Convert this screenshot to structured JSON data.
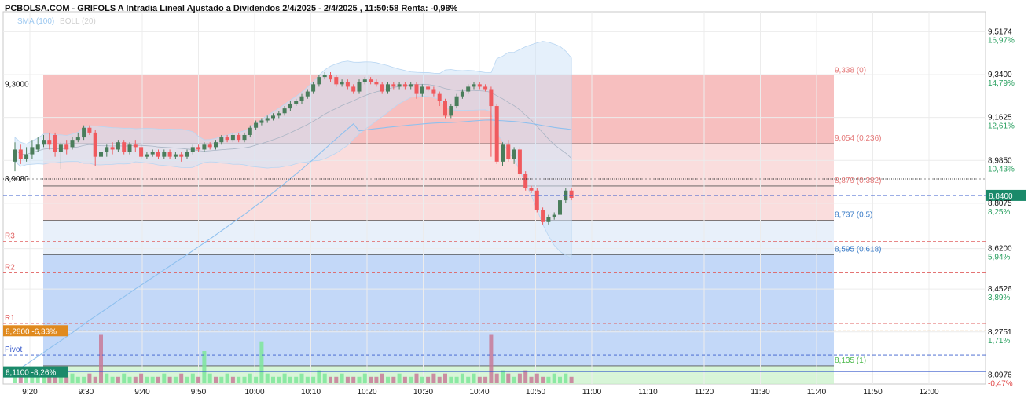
{
  "header": {
    "title": "PCBOLSA.COM - GRIFOLS A Intradia Lineal Ajustado a Dividendos 2/4/2025 - 2/4/2025 , 11:50:58 Renta: -0,98%",
    "indicators": {
      "sma": "SMA (100)",
      "boll": "BOLL (20)"
    }
  },
  "colors": {
    "up": "#4a7d5b",
    "down": "#f05a5e",
    "fib_upper": "#f4aaaa",
    "fib_middle": "#f9d4d4",
    "fib_lower": "#bcd4f7",
    "fib_bottom": "#c9f2c9",
    "sma": "#8fc0ee",
    "bollinger": "#cfe4f7",
    "pivot_red": "#e06060",
    "pivot_blue": "#3a5ccc",
    "price_tag": "#1a8a6a"
  },
  "chart_data": {
    "type": "candlestick",
    "ylim": [
      8.06,
      9.6
    ],
    "x_ticks": [
      "9:20",
      "9:30",
      "9:40",
      "9:50",
      "10:00",
      "10:10",
      "10:20",
      "10:30",
      "10:40",
      "10:50",
      "11:00",
      "11:10",
      "11:20",
      "11:30",
      "11:40",
      "11:50",
      "12:00"
    ],
    "y_ticks": [
      {
        "price": "9,5174",
        "pct": "16,97%"
      },
      {
        "price": "9,3400",
        "pct": "14,79%"
      },
      {
        "price": "9,1625",
        "pct": "12,61%"
      },
      {
        "price": "8,9850",
        "pct": "10,43%"
      },
      {
        "price": "8,8075",
        "pct": "8,25%"
      },
      {
        "price": "8,6200",
        "pct": "5,94%"
      },
      {
        "price": "8,4526",
        "pct": "3,89%"
      },
      {
        "price": "8,2751",
        "pct": "1,71%"
      },
      {
        "price": "8,0976",
        "pct": "-0,47%"
      }
    ],
    "current_price": {
      "label": "8,8400",
      "value": 8.84
    },
    "left_tags": [
      {
        "label": "9,3000",
        "value": 9.3
      },
      {
        "label": "8,9080",
        "value": 8.908
      }
    ],
    "left_badges": [
      {
        "label": "8,2800 -6,33%",
        "value": 8.28,
        "color": "#e08a1e"
      },
      {
        "label": "8,1100 -8,26%",
        "value": 8.11,
        "color": "#1a8a6a"
      }
    ],
    "fibonacci": [
      {
        "label": "9,338 (0)",
        "value": 9.338
      },
      {
        "label": "9,054 (0.236)",
        "value": 9.054
      },
      {
        "label": "8,879 (0.382)",
        "value": 8.879
      },
      {
        "label": "8,737 (0.5)",
        "value": 8.737
      },
      {
        "label": "8,595 (0.618)",
        "value": 8.595
      },
      {
        "label": "8,135 (1)",
        "value": 8.135
      }
    ],
    "pivots": [
      {
        "label": "R3",
        "value": 8.65
      },
      {
        "label": "R2",
        "value": 8.52
      },
      {
        "label": "R1",
        "value": 8.31
      },
      {
        "label": "Pivot",
        "value": 8.18
      }
    ],
    "candles": [
      [
        0,
        8.98,
        9.03,
        8.94,
        9.06
      ],
      [
        1,
        9.03,
        8.99,
        8.97,
        9.05
      ],
      [
        2,
        8.99,
        9.01,
        8.98,
        9.04
      ],
      [
        3,
        9.01,
        9.04,
        8.99,
        9.07
      ],
      [
        4,
        9.03,
        9.05,
        9.02,
        9.08
      ],
      [
        5,
        9.05,
        9.07,
        9.04,
        9.09
      ],
      [
        6,
        9.07,
        9.05,
        9.03,
        9.1
      ],
      [
        7,
        9.09,
        9.02,
        9.0,
        9.1
      ],
      [
        8,
        9.02,
        9.05,
        8.95,
        9.06
      ],
      [
        9,
        9.05,
        9.03,
        9.01,
        9.07
      ],
      [
        10,
        9.04,
        9.07,
        9.03,
        9.08
      ],
      [
        11,
        9.07,
        9.08,
        9.06,
        9.1
      ],
      [
        12,
        9.08,
        9.12,
        9.07,
        9.13
      ],
      [
        13,
        9.12,
        9.1,
        9.09,
        9.13
      ],
      [
        14,
        9.1,
        9.0,
        8.96,
        9.11
      ],
      [
        15,
        9.0,
        9.02,
        8.99,
        9.04
      ],
      [
        16,
        9.02,
        9.04,
        9.0,
        9.05
      ],
      [
        17,
        9.04,
        9.03,
        9.01,
        9.06
      ],
      [
        18,
        9.03,
        9.06,
        9.02,
        9.07
      ],
      [
        19,
        9.06,
        9.02,
        9.01,
        9.07
      ],
      [
        20,
        9.02,
        9.05,
        9.01,
        9.06
      ],
      [
        21,
        9.05,
        9.04,
        9.02,
        9.07
      ],
      [
        22,
        9.04,
        9.0,
        8.99,
        9.05
      ],
      [
        23,
        9.0,
        9.01,
        8.99,
        9.02
      ],
      [
        24,
        9.01,
        9.02,
        9.0,
        9.03
      ],
      [
        25,
        9.02,
        9.0,
        8.99,
        9.03
      ],
      [
        26,
        9.0,
        9.02,
        8.99,
        9.03
      ],
      [
        27,
        9.02,
        9.0,
        8.99,
        9.03
      ],
      [
        28,
        9.0,
        9.01,
        8.99,
        9.02
      ],
      [
        29,
        9.01,
        9.0,
        8.98,
        9.02
      ],
      [
        30,
        9.0,
        9.02,
        8.99,
        9.03
      ],
      [
        31,
        9.02,
        9.04,
        9.01,
        9.05
      ],
      [
        32,
        9.04,
        9.03,
        9.02,
        9.05
      ],
      [
        33,
        9.03,
        9.05,
        9.02,
        9.06
      ],
      [
        34,
        9.05,
        9.04,
        9.03,
        9.06
      ],
      [
        35,
        9.04,
        9.06,
        9.03,
        9.07
      ],
      [
        36,
        9.06,
        9.08,
        9.05,
        9.09
      ],
      [
        37,
        9.08,
        9.07,
        9.06,
        9.09
      ],
      [
        38,
        9.07,
        9.09,
        9.06,
        9.1
      ],
      [
        39,
        9.09,
        9.07,
        9.06,
        9.1
      ],
      [
        40,
        9.07,
        9.09,
        9.06,
        9.1
      ],
      [
        41,
        9.09,
        9.12,
        9.08,
        9.13
      ],
      [
        42,
        9.12,
        9.14,
        9.11,
        9.15
      ],
      [
        43,
        9.14,
        9.15,
        9.13,
        9.16
      ],
      [
        44,
        9.15,
        9.16,
        9.14,
        9.17
      ],
      [
        45,
        9.16,
        9.17,
        9.15,
        9.18
      ],
      [
        46,
        9.17,
        9.18,
        9.16,
        9.19
      ],
      [
        47,
        9.18,
        9.2,
        9.17,
        9.21
      ],
      [
        48,
        9.2,
        9.22,
        9.19,
        9.23
      ],
      [
        49,
        9.22,
        9.23,
        9.21,
        9.24
      ],
      [
        50,
        9.23,
        9.25,
        9.22,
        9.26
      ],
      [
        51,
        9.25,
        9.27,
        9.24,
        9.28
      ],
      [
        52,
        9.27,
        9.3,
        9.26,
        9.31
      ],
      [
        53,
        9.3,
        9.33,
        9.29,
        9.34
      ],
      [
        54,
        9.33,
        9.34,
        9.32,
        9.35
      ],
      [
        55,
        9.34,
        9.32,
        9.31,
        9.35
      ],
      [
        56,
        9.33,
        9.3,
        9.29,
        9.34
      ],
      [
        57,
        9.3,
        9.31,
        9.29,
        9.32
      ],
      [
        58,
        9.31,
        9.29,
        9.28,
        9.32
      ],
      [
        59,
        9.29,
        9.27,
        9.26,
        9.3
      ],
      [
        60,
        9.27,
        9.31,
        9.26,
        9.32
      ],
      [
        61,
        9.31,
        9.32,
        9.3,
        9.33
      ],
      [
        62,
        9.32,
        9.31,
        9.3,
        9.33
      ],
      [
        63,
        9.31,
        9.3,
        9.29,
        9.32
      ],
      [
        64,
        9.3,
        9.27,
        9.26,
        9.31
      ],
      [
        65,
        9.27,
        9.3,
        9.26,
        9.31
      ],
      [
        66,
        9.3,
        9.29,
        9.28,
        9.31
      ],
      [
        67,
        9.29,
        9.3,
        9.28,
        9.31
      ],
      [
        68,
        9.3,
        9.29,
        9.28,
        9.31
      ],
      [
        69,
        9.29,
        9.3,
        9.28,
        9.31
      ],
      [
        70,
        9.3,
        9.26,
        9.24,
        9.31
      ],
      [
        71,
        9.26,
        9.29,
        9.25,
        9.3
      ],
      [
        72,
        9.29,
        9.28,
        9.27,
        9.3
      ],
      [
        73,
        9.28,
        9.26,
        9.25,
        9.29
      ],
      [
        74,
        9.26,
        9.23,
        9.21,
        9.27
      ],
      [
        75,
        9.23,
        9.17,
        9.16,
        9.24
      ],
      [
        76,
        9.17,
        9.21,
        9.16,
        9.22
      ],
      [
        77,
        9.21,
        9.25,
        9.2,
        9.26
      ],
      [
        78,
        9.25,
        9.27,
        9.24,
        9.28
      ],
      [
        79,
        9.27,
        9.29,
        9.26,
        9.3
      ],
      [
        80,
        9.29,
        9.3,
        9.28,
        9.31
      ],
      [
        81,
        9.3,
        9.29,
        9.28,
        9.31
      ],
      [
        82,
        9.29,
        9.28,
        9.27,
        9.3
      ],
      [
        83,
        9.28,
        9.21,
        9.0,
        9.29
      ],
      [
        84,
        9.21,
        8.98,
        8.97,
        9.22
      ],
      [
        85,
        8.98,
        9.05,
        8.96,
        9.06
      ],
      [
        86,
        9.05,
        8.99,
        8.98,
        9.07
      ],
      [
        87,
        8.99,
        9.03,
        8.97,
        9.04
      ],
      [
        88,
        9.03,
        8.93,
        8.92,
        9.04
      ],
      [
        89,
        8.93,
        8.87,
        8.86,
        8.94
      ],
      [
        90,
        8.87,
        8.86,
        8.85,
        8.88
      ],
      [
        91,
        8.86,
        8.78,
        8.77,
        8.87
      ],
      [
        92,
        8.78,
        8.73,
        8.72,
        8.79
      ],
      [
        93,
        8.73,
        8.75,
        8.72,
        8.76
      ],
      [
        94,
        8.75,
        8.76,
        8.74,
        8.77
      ],
      [
        95,
        8.76,
        8.82,
        8.75,
        8.83
      ],
      [
        96,
        8.82,
        8.86,
        8.81,
        8.87
      ],
      [
        97,
        8.86,
        8.83,
        8.82,
        8.87
      ]
    ],
    "volumes": [
      3,
      2,
      2,
      2,
      3,
      2,
      2,
      3,
      2,
      2,
      3,
      2,
      2,
      3,
      2,
      15,
      3,
      2,
      2,
      3,
      2,
      2,
      3,
      2,
      2,
      2,
      3,
      2,
      2,
      3,
      2,
      3,
      2,
      10,
      3,
      2,
      2,
      3,
      2,
      2,
      2,
      3,
      2,
      13,
      3,
      2,
      2,
      3,
      2,
      2,
      3,
      2,
      2,
      4,
      3,
      2,
      2,
      3,
      2,
      2,
      2,
      3,
      2,
      2,
      3,
      2,
      2,
      3,
      2,
      2,
      3,
      2,
      2,
      3,
      2,
      3,
      2,
      2,
      3,
      2,
      3,
      2,
      2,
      15,
      3,
      4,
      3,
      2,
      3,
      4,
      2,
      3,
      2,
      2,
      3,
      2,
      3,
      2
    ],
    "volume_up_flags": [
      1,
      0,
      1,
      1,
      1,
      1,
      0,
      0,
      1,
      0,
      1,
      1,
      1,
      0,
      0,
      0,
      1,
      1,
      0,
      1,
      1,
      0,
      0,
      1,
      1,
      0,
      1,
      0,
      1,
      0,
      1,
      1,
      0,
      1,
      1,
      0,
      1,
      1,
      0,
      1,
      1,
      1,
      1,
      1,
      1,
      1,
      1,
      1,
      1,
      1,
      1,
      1,
      1,
      1,
      1,
      0,
      0,
      1,
      0,
      0,
      1,
      1,
      0,
      0,
      0,
      1,
      0,
      1,
      0,
      1,
      0,
      1,
      0,
      0,
      0,
      0,
      1,
      1,
      1,
      1,
      1,
      0,
      0,
      0,
      0,
      1,
      0,
      1,
      0,
      0,
      0,
      0,
      0,
      1,
      1,
      1,
      1,
      0
    ]
  }
}
